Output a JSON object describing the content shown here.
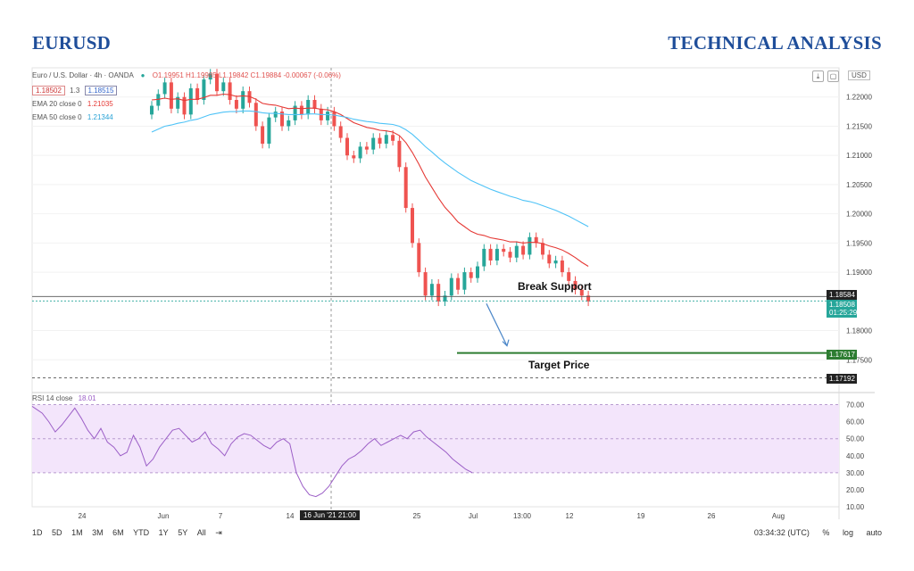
{
  "header": {
    "left": "EURUSD",
    "right": "TECHNICAL ANALYSIS"
  },
  "legend": {
    "title": "Euro / U.S. Dollar · 4h · OANDA",
    "ohlc": "O1.19951 H1.19985 L1.19842 C1.19884 -0.00067 (-0.06%)",
    "bid": "1.18502",
    "spread": "1.3",
    "ask": "1.18515",
    "ema20_label": "EMA 20 close 0",
    "ema20_value": "1.21035",
    "ema50_label": "EMA 50 close 0",
    "ema50_value": "1.21344",
    "rsi_label": "RSI 14 close",
    "rsi_value": "18.01"
  },
  "currency": "USD",
  "price_tags": {
    "support": "1.18584",
    "current": "1.18508",
    "countdown": "01:25:29",
    "target": "1.17617",
    "line2": "1.17192"
  },
  "annotations": {
    "break_support": "Break Support",
    "target_price": "Target Price"
  },
  "crosshair_label": "16 Jun '21  21:00",
  "bottom_bar": {
    "timeframes": [
      "1D",
      "5D",
      "1M",
      "3M",
      "6M",
      "YTD",
      "1Y",
      "5Y",
      "All"
    ],
    "clock": "03:34:32 (UTC)",
    "percent": "%",
    "log": "log",
    "auto": "auto"
  },
  "colors": {
    "up": "#26a69a",
    "down": "#ef5350",
    "ema20": "#e53935",
    "ema50": "#4fc3f7",
    "rsi": "#9c5fc7",
    "target": "#2e7d32",
    "header": "#1f4e9a"
  },
  "chart_data": [
    {
      "type": "candlestick",
      "title": "Euro / U.S. Dollar · 4h · OANDA",
      "ylim": [
        1.17,
        1.225
      ],
      "y_ticks": [
        "1.22000",
        "1.21500",
        "1.21000",
        "1.20500",
        "1.20000",
        "1.19500",
        "1.19000",
        "1.18000",
        "1.17500"
      ],
      "x_ticks": [
        "24",
        "Jun",
        "7",
        "14",
        "25",
        "Jul",
        "13:00",
        "12",
        "19",
        "26",
        "Aug"
      ],
      "close_series": [
        1.2185,
        1.2205,
        1.2225,
        1.218,
        1.22,
        1.217,
        1.2215,
        1.2195,
        1.223,
        1.224,
        1.221,
        1.2225,
        1.2195,
        1.218,
        1.221,
        1.219,
        1.215,
        1.212,
        1.2165,
        1.2175,
        1.215,
        1.216,
        1.2185,
        1.217,
        1.2195,
        1.218,
        1.216,
        1.2175,
        1.215,
        1.213,
        1.21,
        1.2095,
        1.2115,
        1.211,
        1.213,
        1.212,
        1.2135,
        1.2125,
        1.208,
        1.201,
        1.195,
        1.19,
        1.186,
        1.188,
        1.185,
        1.186,
        1.189,
        1.187,
        1.19,
        1.189,
        1.191,
        1.194,
        1.192,
        1.194,
        1.1935,
        1.1925,
        1.1945,
        1.193,
        1.196,
        1.195,
        1.193,
        1.1915,
        1.192,
        1.19,
        1.1885,
        1.187,
        1.186,
        1.185
      ],
      "ema20": [
        1.2195,
        1.2196,
        1.2198,
        1.2196,
        1.2197,
        1.2194,
        1.2196,
        1.2196,
        1.2199,
        1.2203,
        1.2203,
        1.2205,
        1.2204,
        1.2201,
        1.2202,
        1.2201,
        1.2196,
        1.2189,
        1.2187,
        1.2186,
        1.2183,
        1.218,
        1.2181,
        1.218,
        1.2181,
        1.2181,
        1.2179,
        1.2178,
        1.2175,
        1.217,
        1.2163,
        1.2156,
        1.2152,
        1.2148,
        1.2146,
        1.2143,
        1.2142,
        1.214,
        1.2134,
        1.2122,
        1.2105,
        1.2085,
        1.2063,
        1.2045,
        1.2027,
        1.2011,
        1.1999,
        1.1986,
        1.1978,
        1.197,
        1.1965,
        1.1963,
        1.1959,
        1.1957,
        1.1955,
        1.1952,
        1.1952,
        1.195,
        1.1951,
        1.1951,
        1.1949,
        1.1945,
        1.1942,
        1.1938,
        1.1932,
        1.1925,
        1.1917,
        1.191
      ],
      "ema50": [
        1.214,
        1.2145,
        1.215,
        1.2152,
        1.2155,
        1.2157,
        1.216,
        1.2162,
        1.2166,
        1.217,
        1.2172,
        1.2174,
        1.2175,
        1.2175,
        1.2176,
        1.2176,
        1.2175,
        1.2173,
        1.2172,
        1.2172,
        1.2171,
        1.217,
        1.217,
        1.217,
        1.2171,
        1.2171,
        1.217,
        1.217,
        1.2169,
        1.2167,
        1.2165,
        1.2162,
        1.216,
        1.2158,
        1.2157,
        1.2155,
        1.2154,
        1.2153,
        1.215,
        1.2144,
        1.2136,
        1.2126,
        1.2115,
        1.2106,
        1.2096,
        1.2087,
        1.2079,
        1.2071,
        1.2064,
        1.2057,
        1.2052,
        1.2047,
        1.2042,
        1.2038,
        1.2034,
        1.203,
        1.2027,
        1.2023,
        1.2021,
        1.2018,
        1.2014,
        1.201,
        1.2006,
        1.2001,
        1.1996,
        1.199,
        1.1984,
        1.1978
      ],
      "lines": {
        "break_support": 1.18584,
        "target_price": 1.17617,
        "level": 1.17192
      }
    },
    {
      "type": "line",
      "title": "RSI 14 close",
      "ylim": [
        10,
        75
      ],
      "y_ticks": [
        "70.00",
        "60.00",
        "50.00",
        "40.00",
        "30.00",
        "20.00",
        "10.00"
      ],
      "band": [
        30,
        70
      ],
      "values": [
        69,
        65,
        60,
        54,
        58,
        63,
        68,
        62,
        55,
        50,
        56,
        48,
        45,
        40,
        42,
        52,
        45,
        34,
        38,
        45,
        50,
        55,
        56,
        52,
        48,
        50,
        54,
        47,
        44,
        40,
        47,
        51,
        53,
        52,
        49,
        46,
        44,
        48,
        50,
        47,
        30,
        22,
        17,
        16,
        18,
        22,
        28,
        34,
        38,
        40,
        43,
        47,
        50,
        46,
        48,
        50,
        52,
        50,
        54,
        55,
        51,
        48,
        45,
        42,
        38,
        35,
        32,
        30
      ]
    }
  ]
}
